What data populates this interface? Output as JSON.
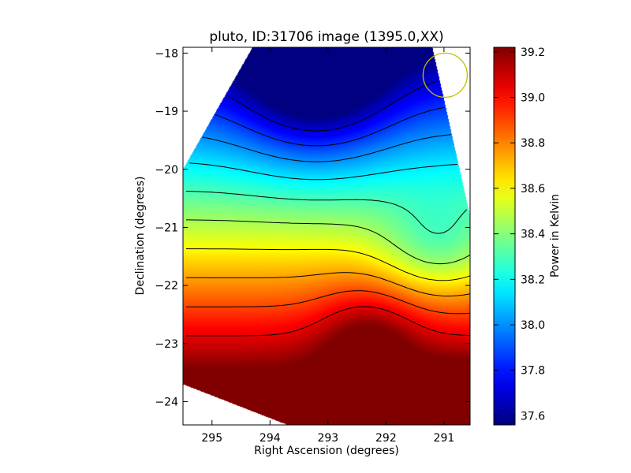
{
  "chart_data": {
    "type": "heatmap",
    "title": "pluto, ID:31706 image (1395.0,XX)",
    "xlabel": "Right Ascension (degrees)",
    "ylabel": "Declination (degrees)",
    "x_axis_inverted": true,
    "xlim": [
      295.5,
      290.55
    ],
    "ylim": [
      -24.4,
      -17.9
    ],
    "xticks": [
      295,
      294,
      293,
      292,
      291
    ],
    "yticks": [
      -18,
      -19,
      -20,
      -21,
      -22,
      -23,
      -24
    ],
    "colorbar": {
      "label": "Power in Kelvin",
      "min": 37.56,
      "max": 39.22,
      "ticks": [
        "37.6",
        "37.8",
        "38.0",
        "38.2",
        "38.4",
        "38.6",
        "38.8",
        "39.0",
        "39.2"
      ],
      "colormap": "jet"
    },
    "contour_lines": true,
    "beam_circle": {
      "ra": 290.98,
      "dec": -18.38,
      "color": "#bfbf00"
    },
    "data_region_corners": [
      {
        "ra": 295.5,
        "dec": -20.0
      },
      {
        "ra": 294.3,
        "dec": -17.9
      },
      {
        "ra": 291.2,
        "dec": -17.9
      },
      {
        "ra": 290.55,
        "dec": -20.8
      },
      {
        "ra": 290.55,
        "dec": -24.4
      },
      {
        "ra": 293.7,
        "dec": -24.4
      },
      {
        "ra": 295.5,
        "dec": -23.7
      }
    ],
    "field_features": {
      "minimum": {
        "ra": 293.2,
        "dec": -18.1,
        "value": 37.57
      },
      "maximum": {
        "ra": 290.7,
        "dec": -24.2,
        "value": 39.2
      },
      "secondary_high": {
        "ra": 292.3,
        "dec": -23.0,
        "value": 39.05
      }
    }
  }
}
